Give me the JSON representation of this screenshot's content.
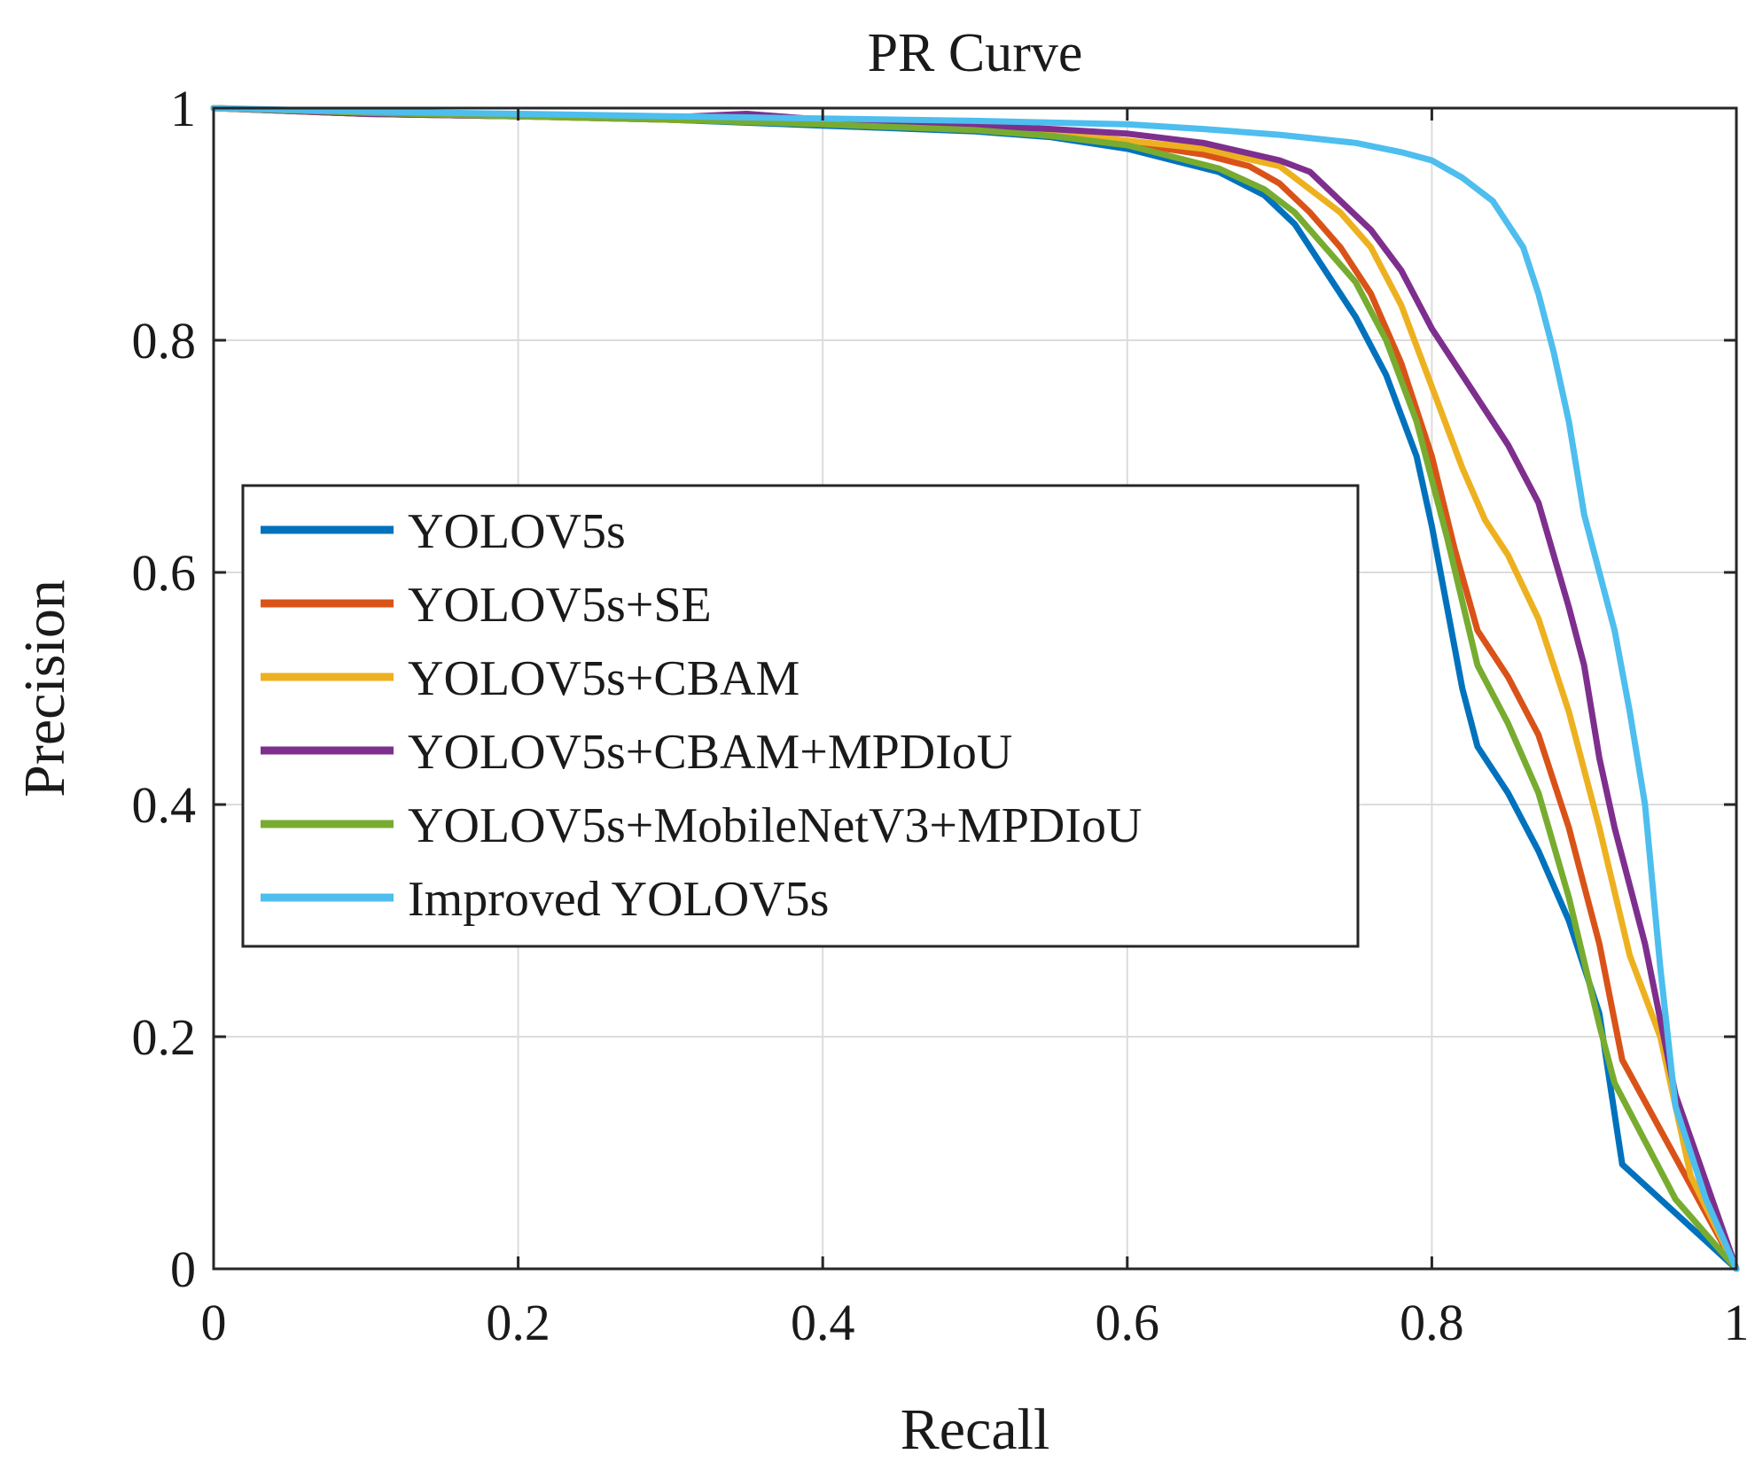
{
  "chart_data": {
    "type": "line",
    "title": "PR Curve",
    "xlabel": "Recall",
    "ylabel": "Precision",
    "xlim": [
      0,
      1
    ],
    "ylim": [
      0,
      1
    ],
    "grid": true,
    "legend_position": "center-left",
    "xticks": [
      0,
      0.2,
      0.4,
      0.6,
      0.8,
      1
    ],
    "xtick_labels": [
      "0",
      "0.2",
      "0.4",
      "0.6",
      "0.8",
      "1"
    ],
    "yticks": [
      0,
      0.2,
      0.4,
      0.6,
      0.8,
      1
    ],
    "ytick_labels": [
      "0",
      "0.2",
      "0.4",
      "0.6",
      "0.8",
      "1"
    ],
    "series": [
      {
        "name": "YOLOV5s",
        "color": "#0072BD",
        "x": [
          0,
          0.1,
          0.2,
          0.3,
          0.4,
          0.5,
          0.55,
          0.6,
          0.63,
          0.66,
          0.69,
          0.71,
          0.73,
          0.75,
          0.77,
          0.79,
          0.8,
          0.81,
          0.82,
          0.83,
          0.85,
          0.87,
          0.89,
          0.91,
          0.925,
          1.0
        ],
        "y": [
          1.0,
          0.995,
          0.993,
          0.99,
          0.985,
          0.98,
          0.975,
          0.965,
          0.955,
          0.945,
          0.925,
          0.9,
          0.86,
          0.82,
          0.77,
          0.7,
          0.64,
          0.57,
          0.5,
          0.45,
          0.41,
          0.36,
          0.3,
          0.22,
          0.09,
          0.0
        ]
      },
      {
        "name": "YOLOV5s+SE",
        "color": "#D95319",
        "x": [
          0,
          0.1,
          0.2,
          0.3,
          0.4,
          0.5,
          0.55,
          0.6,
          0.65,
          0.68,
          0.7,
          0.72,
          0.74,
          0.76,
          0.78,
          0.8,
          0.815,
          0.83,
          0.85,
          0.87,
          0.89,
          0.91,
          0.925,
          0.95,
          1.0
        ],
        "y": [
          1.0,
          0.995,
          0.993,
          0.99,
          0.987,
          0.982,
          0.978,
          0.97,
          0.96,
          0.95,
          0.935,
          0.91,
          0.88,
          0.84,
          0.78,
          0.7,
          0.62,
          0.55,
          0.51,
          0.46,
          0.38,
          0.28,
          0.18,
          0.12,
          0.0
        ]
      },
      {
        "name": "YOLOV5s+CBAM",
        "color": "#EDB120",
        "x": [
          0,
          0.1,
          0.2,
          0.3,
          0.4,
          0.5,
          0.55,
          0.6,
          0.65,
          0.7,
          0.72,
          0.74,
          0.76,
          0.78,
          0.8,
          0.82,
          0.835,
          0.85,
          0.87,
          0.89,
          0.91,
          0.93,
          0.95,
          0.97,
          1.0
        ],
        "y": [
          1.0,
          0.995,
          0.993,
          0.99,
          0.987,
          0.983,
          0.979,
          0.972,
          0.965,
          0.95,
          0.93,
          0.91,
          0.88,
          0.83,
          0.76,
          0.69,
          0.645,
          0.615,
          0.56,
          0.48,
          0.38,
          0.27,
          0.2,
          0.08,
          0.0
        ]
      },
      {
        "name": "YOLOV5s+CBAM+MPDIoU",
        "color": "#7E2F8E",
        "x": [
          0,
          0.1,
          0.2,
          0.3,
          0.35,
          0.4,
          0.5,
          0.55,
          0.6,
          0.65,
          0.7,
          0.72,
          0.74,
          0.76,
          0.78,
          0.8,
          0.82,
          0.835,
          0.85,
          0.87,
          0.89,
          0.9,
          0.91,
          0.92,
          0.94,
          0.96,
          1.0
        ],
        "y": [
          1.0,
          0.995,
          0.993,
          0.992,
          0.995,
          0.99,
          0.985,
          0.982,
          0.978,
          0.97,
          0.955,
          0.945,
          0.92,
          0.895,
          0.86,
          0.81,
          0.77,
          0.74,
          0.71,
          0.66,
          0.57,
          0.52,
          0.44,
          0.38,
          0.28,
          0.15,
          0.0
        ]
      },
      {
        "name": "YOLOV5s+MobileNetV3+MPDIoU",
        "color": "#77AC30",
        "x": [
          0,
          0.1,
          0.2,
          0.3,
          0.4,
          0.5,
          0.55,
          0.6,
          0.63,
          0.66,
          0.69,
          0.71,
          0.73,
          0.75,
          0.77,
          0.79,
          0.81,
          0.83,
          0.85,
          0.87,
          0.89,
          0.91,
          0.92,
          0.94,
          0.96,
          1.0
        ],
        "y": [
          1.0,
          0.996,
          0.993,
          0.99,
          0.986,
          0.981,
          0.976,
          0.968,
          0.958,
          0.948,
          0.93,
          0.91,
          0.88,
          0.85,
          0.8,
          0.73,
          0.63,
          0.52,
          0.47,
          0.41,
          0.32,
          0.21,
          0.16,
          0.11,
          0.06,
          0.0
        ]
      },
      {
        "name": "Improved YOLOV5s",
        "color": "#4DBEEE",
        "x": [
          0,
          0.1,
          0.2,
          0.3,
          0.4,
          0.5,
          0.6,
          0.65,
          0.7,
          0.75,
          0.78,
          0.8,
          0.82,
          0.84,
          0.86,
          0.87,
          0.88,
          0.89,
          0.9,
          0.91,
          0.92,
          0.93,
          0.94,
          0.95,
          0.96,
          0.98,
          1.0
        ],
        "y": [
          1.0,
          0.997,
          0.995,
          0.993,
          0.991,
          0.989,
          0.986,
          0.982,
          0.977,
          0.97,
          0.962,
          0.955,
          0.94,
          0.92,
          0.88,
          0.84,
          0.79,
          0.73,
          0.65,
          0.6,
          0.55,
          0.48,
          0.4,
          0.26,
          0.14,
          0.06,
          0.0
        ]
      }
    ]
  }
}
